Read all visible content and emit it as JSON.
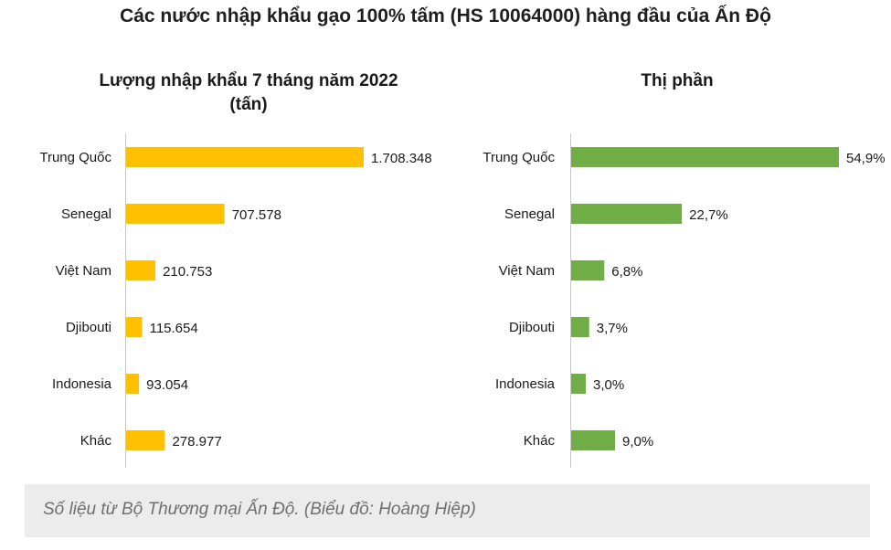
{
  "title": "Các nước nhập khẩu gạo 100% tấm (HS 10064000) hàng đầu của Ấn Độ",
  "caption": "Số liệu từ Bộ Thương mại Ấn Độ. (Biểu đồ: Hoàng Hiệp)",
  "colors": {
    "volume_bar": "#FFC000",
    "share_bar": "#70AD47",
    "axis": "#c8c8c8",
    "caption_bg": "#ececec"
  },
  "chart_data": [
    {
      "type": "bar",
      "orientation": "horizontal",
      "title_lines": [
        "Lượng nhập khẩu 7 tháng năm 2022",
        "(tấn)"
      ],
      "categories": [
        "Trung Quốc",
        "Senegal",
        "Việt Nam",
        "Djibouti",
        "Indonesia",
        "Khác"
      ],
      "values": [
        1708348,
        707578,
        210753,
        115654,
        93054,
        278977
      ],
      "value_labels": [
        "1.708.348",
        "707.578",
        "210.753",
        "115.654",
        "93.054",
        "278.977"
      ],
      "xlim": [
        0,
        1708348
      ],
      "grid": false,
      "legend": "none"
    },
    {
      "type": "bar",
      "orientation": "horizontal",
      "title_lines": [
        "Thị phần"
      ],
      "categories": [
        "Trung Quốc",
        "Senegal",
        "Việt Nam",
        "Djibouti",
        "Indonesia",
        "Khác"
      ],
      "values": [
        54.9,
        22.7,
        6.8,
        3.7,
        3.0,
        9.0
      ],
      "value_labels": [
        "54,9%",
        "22,7%",
        "6,8%",
        "3,7%",
        "3,0%",
        "9,0%"
      ],
      "unit": "%",
      "xlim": [
        0,
        54.9
      ],
      "grid": false,
      "legend": "none"
    }
  ]
}
